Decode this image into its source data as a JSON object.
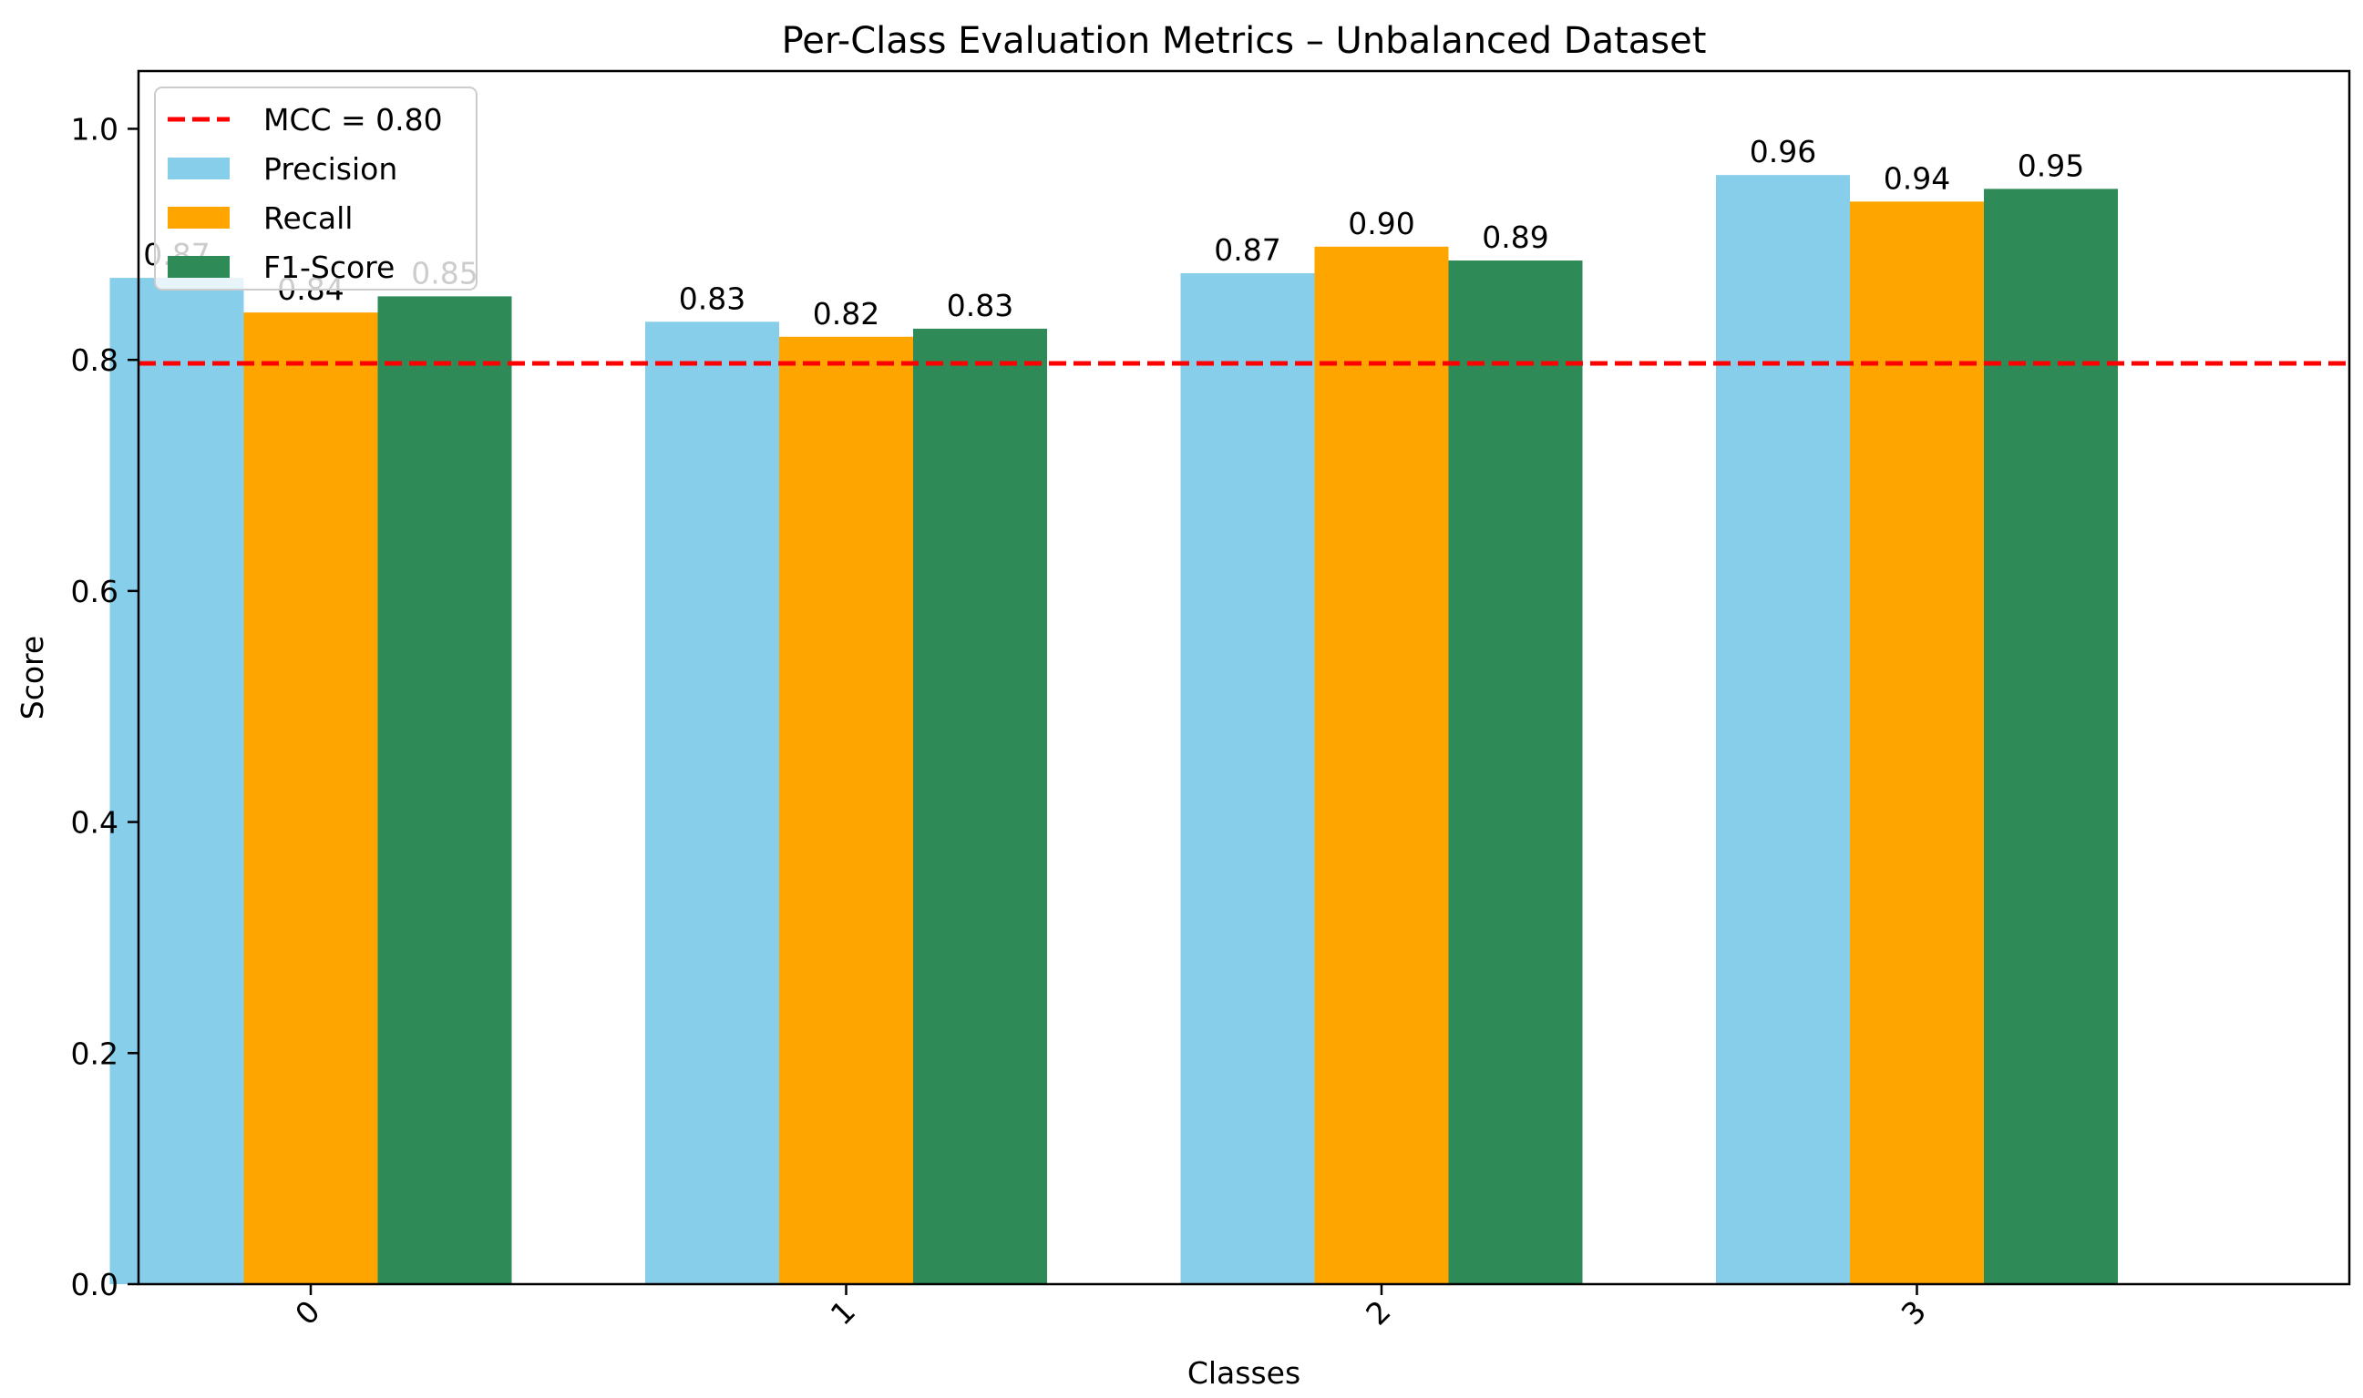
{
  "chart_data": {
    "type": "bar",
    "title": "Per-Class Evaluation Metrics – Unbalanced Dataset",
    "xlabel": "Classes",
    "ylabel": "Score",
    "categories": [
      "0",
      "1",
      "2",
      "3"
    ],
    "ylim": [
      0,
      1.05
    ],
    "yticks": [
      0.0,
      0.2,
      0.4,
      0.6,
      0.8,
      1.0
    ],
    "ytick_labels": [
      "0.0",
      "0.2",
      "0.4",
      "0.6",
      "0.8",
      "1.0"
    ],
    "xtick_rotation_deg": 45,
    "grid": false,
    "legend_position": "upper-left",
    "series": [
      {
        "name": "Precision",
        "color": "#87CEEB",
        "values": [
          0.871,
          0.833,
          0.875,
          0.96
        ],
        "labels": [
          "0.87",
          "0.83",
          "0.87",
          "0.96"
        ]
      },
      {
        "name": "Recall",
        "color": "#FFA500",
        "values": [
          0.841,
          0.82,
          0.898,
          0.937
        ],
        "labels": [
          "0.84",
          "0.82",
          "0.90",
          "0.94"
        ]
      },
      {
        "name": "F1-Score",
        "color": "#2E8B57",
        "values": [
          0.855,
          0.827,
          0.886,
          0.948
        ],
        "labels": [
          "0.85",
          "0.83",
          "0.89",
          "0.95"
        ]
      }
    ],
    "reference_line": {
      "label": "MCC = 0.80",
      "value": 0.797,
      "color": "#FF0000",
      "style": "dashed"
    }
  }
}
